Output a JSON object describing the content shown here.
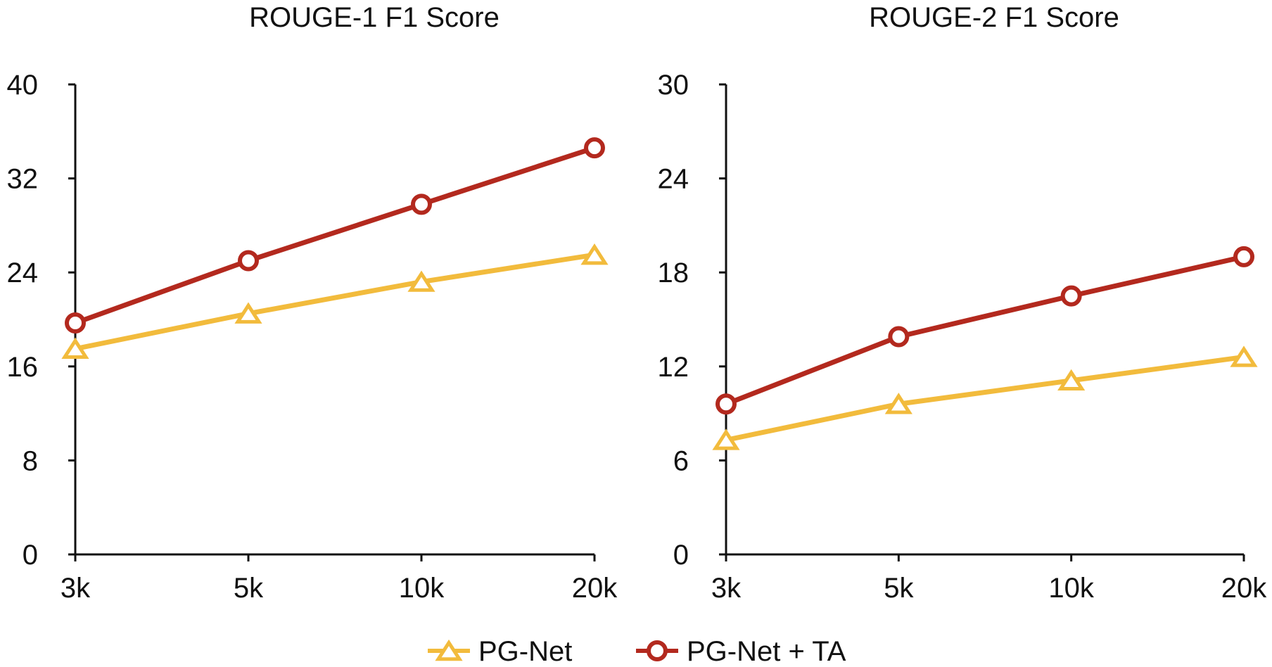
{
  "chart_data": [
    {
      "type": "line",
      "title": "ROUGE-1 F1 Score",
      "categories": [
        "3k",
        "5k",
        "10k",
        "20k"
      ],
      "xlabel": "",
      "ylabel": "",
      "ylim": [
        0,
        40
      ],
      "yticks": [
        "0",
        "8",
        "16",
        "24",
        "32",
        "40"
      ],
      "grid": false,
      "series": [
        {
          "name": "PG-Net",
          "values": [
            17.5,
            20.5,
            23.2,
            25.5
          ],
          "color": "#F2BB3C",
          "marker": "triangle"
        },
        {
          "name": "PG-Net + TA",
          "values": [
            19.7,
            25.0,
            29.8,
            34.6
          ],
          "color": "#B3291E",
          "marker": "circle"
        }
      ]
    },
    {
      "type": "line",
      "title": "ROUGE-2 F1 Score",
      "categories": [
        "3k",
        "5k",
        "10k",
        "20k"
      ],
      "xlabel": "",
      "ylabel": "",
      "ylim": [
        0,
        30
      ],
      "yticks": [
        "0",
        "6",
        "12",
        "18",
        "24",
        "30"
      ],
      "grid": false,
      "series": [
        {
          "name": "PG-Net",
          "values": [
            7.3,
            9.6,
            11.1,
            12.6
          ],
          "color": "#F2BB3C",
          "marker": "triangle"
        },
        {
          "name": "PG-Net + TA",
          "values": [
            9.6,
            13.9,
            16.5,
            19.0
          ],
          "color": "#B3291E",
          "marker": "circle"
        }
      ]
    }
  ],
  "legend": {
    "placement": "bottom-center",
    "items": [
      {
        "label": "PG-Net",
        "color": "#F2BB3C",
        "marker": "triangle"
      },
      {
        "label": "PG-Net + TA",
        "color": "#B3291E",
        "marker": "circle"
      }
    ]
  }
}
